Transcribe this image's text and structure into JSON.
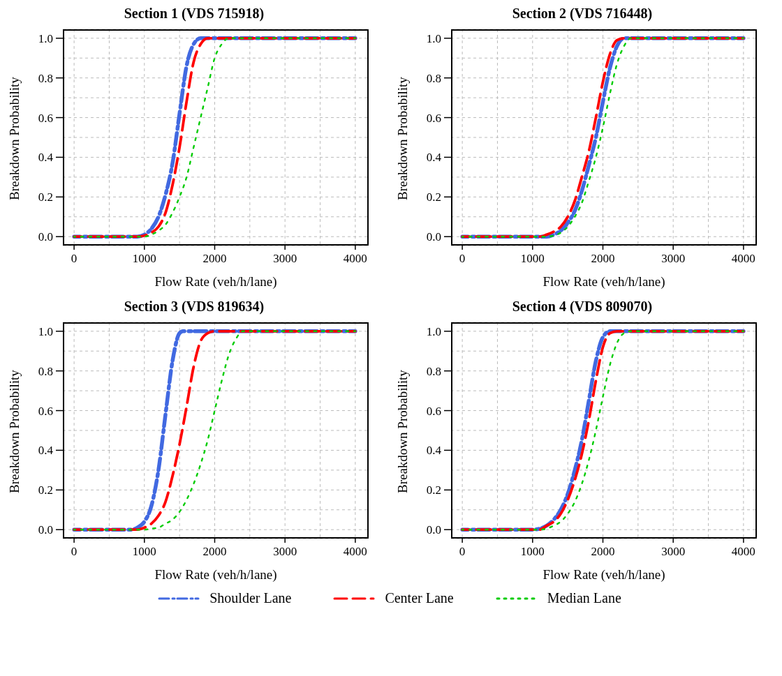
{
  "chart_data": [
    {
      "type": "line",
      "title": "Section 1 (VDS 715918)",
      "xlabel": "Flow Rate (veh/h/lane)",
      "ylabel": "Breakdown Probability",
      "xlim": [
        -160,
        4190
      ],
      "ylim": [
        -0.045,
        1.045
      ],
      "xticks": [
        0,
        {
          "value": 500,
          "label": null
        },
        1000,
        {
          "value": 1500,
          "label": null
        },
        2000,
        {
          "value": 2500,
          "label": null
        },
        3000,
        {
          "value": 3500,
          "label": null
        },
        4000
      ],
      "yticks": [
        {
          "value": 0,
          "label": "0.0"
        },
        {
          "value": 0.1,
          "label": null
        },
        {
          "value": 0.2,
          "label": "0.2"
        },
        {
          "value": 0.3,
          "label": null
        },
        {
          "value": 0.4,
          "label": "0.4"
        },
        {
          "value": 0.5,
          "label": null
        },
        {
          "value": 0.6,
          "label": "0.6"
        },
        {
          "value": 0.7,
          "label": null
        },
        {
          "value": 0.8,
          "label": "0.8"
        },
        {
          "value": 0.9,
          "label": null
        },
        {
          "value": 1,
          "label": "1.0"
        }
      ],
      "grid": true,
      "legend": "bottom",
      "marker": "none",
      "series": [
        {
          "name": "Shoulder Lane",
          "color": "#4169e1",
          "line_style": "dashdot",
          "x": [
            0,
            900,
            1000,
            1100,
            1200,
            1300,
            1400,
            1500,
            1600,
            1700,
            1800,
            4000
          ],
          "values": [
            0,
            0,
            0.01,
            0.04,
            0.1,
            0.21,
            0.37,
            0.62,
            0.86,
            0.97,
            1,
            1
          ]
        },
        {
          "name": "Center Lane",
          "color": "#ff0000",
          "line_style": "dashed",
          "x": [
            0,
            900,
            1000,
            1100,
            1200,
            1300,
            1400,
            1500,
            1600,
            1700,
            1800,
            1900,
            4000
          ],
          "values": [
            0,
            0,
            0.005,
            0.02,
            0.05,
            0.12,
            0.26,
            0.45,
            0.68,
            0.88,
            0.97,
            1,
            1
          ]
        },
        {
          "name": "Median Lane",
          "color": "#00cc00",
          "line_style": "dotted",
          "x": [
            0,
            1000,
            1100,
            1200,
            1300,
            1400,
            1500,
            1600,
            1700,
            1800,
            1900,
            2000,
            2100,
            2200,
            4000
          ],
          "values": [
            0,
            0,
            0.01,
            0.03,
            0.06,
            0.12,
            0.2,
            0.3,
            0.45,
            0.6,
            0.75,
            0.9,
            0.97,
            1,
            1
          ]
        }
      ]
    },
    {
      "type": "line",
      "title": "Section 2 (VDS 716448)",
      "xlabel": "Flow Rate (veh/h/lane)",
      "ylabel": "Breakdown Probability",
      "xlim": [
        -160,
        4190
      ],
      "ylim": [
        -0.045,
        1.045
      ],
      "xticks": [
        0,
        {
          "value": 500,
          "label": null
        },
        1000,
        {
          "value": 1500,
          "label": null
        },
        2000,
        {
          "value": 2500,
          "label": null
        },
        3000,
        {
          "value": 3500,
          "label": null
        },
        4000
      ],
      "yticks": [
        {
          "value": 0,
          "label": "0.0"
        },
        {
          "value": 0.1,
          "label": null
        },
        {
          "value": 0.2,
          "label": "0.2"
        },
        {
          "value": 0.3,
          "label": null
        },
        {
          "value": 0.4,
          "label": "0.4"
        },
        {
          "value": 0.5,
          "label": null
        },
        {
          "value": 0.6,
          "label": "0.6"
        },
        {
          "value": 0.7,
          "label": null
        },
        {
          "value": 0.8,
          "label": "0.8"
        },
        {
          "value": 0.9,
          "label": null
        },
        {
          "value": 1,
          "label": "1.0"
        }
      ],
      "grid": true,
      "marker": "none",
      "series": [
        {
          "name": "Shoulder Lane",
          "color": "#4169e1",
          "line_style": "dashdot",
          "x": [
            0,
            1200,
            1300,
            1400,
            1500,
            1600,
            1700,
            1800,
            1900,
            2000,
            2100,
            2200,
            2300,
            4000
          ],
          "values": [
            0,
            0,
            0.01,
            0.03,
            0.07,
            0.13,
            0.23,
            0.36,
            0.5,
            0.68,
            0.85,
            0.96,
            1,
            1
          ]
        },
        {
          "name": "Center Lane",
          "color": "#ff0000",
          "line_style": "dashed",
          "x": [
            0,
            1100,
            1200,
            1300,
            1400,
            1500,
            1600,
            1700,
            1800,
            1900,
            2000,
            2100,
            2200,
            2300,
            4000
          ],
          "values": [
            0,
            0,
            0.01,
            0.025,
            0.05,
            0.1,
            0.18,
            0.3,
            0.43,
            0.6,
            0.78,
            0.92,
            0.99,
            1,
            1
          ]
        },
        {
          "name": "Median Lane",
          "color": "#00cc00",
          "line_style": "dotted",
          "x": [
            0,
            1200,
            1300,
            1400,
            1500,
            1600,
            1700,
            1800,
            1900,
            2000,
            2100,
            2200,
            2300,
            2400,
            4000
          ],
          "values": [
            0,
            0,
            0.005,
            0.02,
            0.05,
            0.1,
            0.17,
            0.28,
            0.4,
            0.55,
            0.72,
            0.87,
            0.96,
            1,
            1
          ]
        }
      ]
    },
    {
      "type": "line",
      "title": "Section 3 (VDS 819634)",
      "xlabel": "Flow Rate (veh/h/lane)",
      "ylabel": "Breakdown Probability",
      "xlim": [
        -160,
        4190
      ],
      "ylim": [
        -0.045,
        1.045
      ],
      "xticks": [
        0,
        {
          "value": 500,
          "label": null
        },
        1000,
        {
          "value": 1500,
          "label": null
        },
        2000,
        {
          "value": 2500,
          "label": null
        },
        3000,
        {
          "value": 3500,
          "label": null
        },
        4000
      ],
      "yticks": [
        {
          "value": 0,
          "label": "0.0"
        },
        {
          "value": 0.1,
          "label": null
        },
        {
          "value": 0.2,
          "label": "0.2"
        },
        {
          "value": 0.3,
          "label": null
        },
        {
          "value": 0.4,
          "label": "0.4"
        },
        {
          "value": 0.5,
          "label": null
        },
        {
          "value": 0.6,
          "label": "0.6"
        },
        {
          "value": 0.7,
          "label": null
        },
        {
          "value": 0.8,
          "label": "0.8"
        },
        {
          "value": 0.9,
          "label": null
        },
        {
          "value": 1,
          "label": "1.0"
        }
      ],
      "grid": true,
      "marker": "none",
      "series": [
        {
          "name": "Shoulder Lane",
          "color": "#4169e1",
          "line_style": "dashdot",
          "x": [
            0,
            800,
            900,
            1000,
            1100,
            1200,
            1300,
            1400,
            1500,
            1550,
            4000
          ],
          "values": [
            0,
            0,
            0.01,
            0.04,
            0.12,
            0.3,
            0.58,
            0.85,
            0.99,
            1,
            1
          ]
        },
        {
          "name": "Center Lane",
          "color": "#ff0000",
          "line_style": "dashed",
          "x": [
            0,
            900,
            1000,
            1100,
            1200,
            1300,
            1400,
            1500,
            1600,
            1700,
            1800,
            1900,
            2000,
            4000
          ],
          "values": [
            0,
            0,
            0.01,
            0.03,
            0.07,
            0.14,
            0.27,
            0.43,
            0.62,
            0.82,
            0.95,
            0.99,
            1,
            1
          ]
        },
        {
          "name": "Median Lane",
          "color": "#00cc00",
          "line_style": "dotted",
          "x": [
            0,
            1000,
            1100,
            1200,
            1300,
            1400,
            1500,
            1600,
            1700,
            1800,
            1900,
            2000,
            2100,
            2200,
            2300,
            2400,
            4000
          ],
          "values": [
            0,
            0,
            0.005,
            0.01,
            0.03,
            0.05,
            0.09,
            0.15,
            0.23,
            0.33,
            0.45,
            0.6,
            0.75,
            0.88,
            0.96,
            1,
            1
          ]
        }
      ]
    },
    {
      "type": "line",
      "title": "Section 4 (VDS 809070)",
      "xlabel": "Flow Rate (veh/h/lane)",
      "ylabel": "Breakdown Probability",
      "xlim": [
        -160,
        4190
      ],
      "ylim": [
        -0.045,
        1.045
      ],
      "xticks": [
        0,
        {
          "value": 500,
          "label": null
        },
        1000,
        {
          "value": 1500,
          "label": null
        },
        2000,
        {
          "value": 2500,
          "label": null
        },
        3000,
        {
          "value": 3500,
          "label": null
        },
        4000
      ],
      "yticks": [
        {
          "value": 0,
          "label": "0.0"
        },
        {
          "value": 0.1,
          "label": null
        },
        {
          "value": 0.2,
          "label": "0.2"
        },
        {
          "value": 0.3,
          "label": null
        },
        {
          "value": 0.4,
          "label": "0.4"
        },
        {
          "value": 0.5,
          "label": null
        },
        {
          "value": 0.6,
          "label": "0.6"
        },
        {
          "value": 0.7,
          "label": null
        },
        {
          "value": 0.8,
          "label": "0.8"
        },
        {
          "value": 0.9,
          "label": null
        },
        {
          "value": 1,
          "label": "1.0"
        }
      ],
      "grid": true,
      "marker": "none",
      "series": [
        {
          "name": "Shoulder Lane",
          "color": "#4169e1",
          "line_style": "dashdot",
          "x": [
            0,
            1000,
            1100,
            1200,
            1300,
            1400,
            1500,
            1600,
            1700,
            1800,
            1900,
            2000,
            2100,
            4000
          ],
          "values": [
            0,
            0,
            0.005,
            0.02,
            0.05,
            0.1,
            0.18,
            0.3,
            0.45,
            0.65,
            0.85,
            0.97,
            1,
            1
          ]
        },
        {
          "name": "Center Lane",
          "color": "#ff0000",
          "line_style": "dashed",
          "x": [
            0,
            1100,
            1200,
            1300,
            1400,
            1500,
            1600,
            1700,
            1800,
            1900,
            2000,
            2100,
            2200,
            4000
          ],
          "values": [
            0,
            0,
            0.02,
            0.04,
            0.08,
            0.15,
            0.25,
            0.38,
            0.55,
            0.75,
            0.92,
            0.99,
            1,
            1
          ]
        },
        {
          "name": "Median Lane",
          "color": "#00cc00",
          "line_style": "dotted",
          "x": [
            0,
            1100,
            1200,
            1300,
            1400,
            1500,
            1600,
            1700,
            1800,
            1900,
            2000,
            2100,
            2200,
            2300,
            2400,
            4000
          ],
          "values": [
            0,
            0,
            0.005,
            0.02,
            0.04,
            0.08,
            0.14,
            0.23,
            0.35,
            0.5,
            0.67,
            0.83,
            0.94,
            0.99,
            1,
            1
          ]
        }
      ]
    }
  ]
}
